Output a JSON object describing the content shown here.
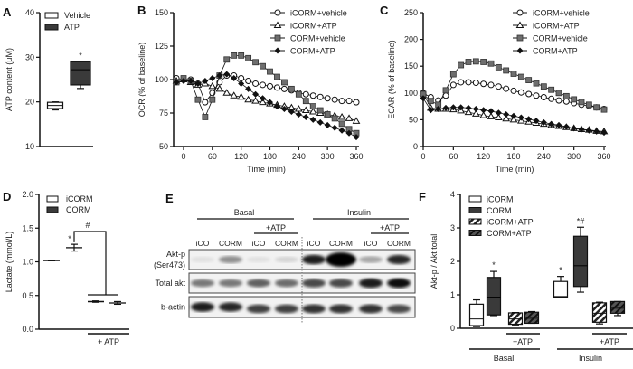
{
  "panels": {
    "A": "A",
    "B": "B",
    "C": "C",
    "D": "D",
    "E": "E",
    "F": "F"
  },
  "colors": {
    "dark": "#3a3a3a",
    "black": "#111111",
    "grey": "#777777",
    "white": "#ffffff"
  },
  "chart_data": [
    {
      "id": "A",
      "type": "box",
      "ylabel": "ATP content (μM)",
      "ylim": [
        10,
        40
      ],
      "yticks": [
        10,
        20,
        30,
        40
      ],
      "legend": [
        "Vehicle",
        "ATP"
      ],
      "groups": [
        {
          "name": "Vehicle",
          "fill": "white",
          "min": 18.2,
          "q1": 18.5,
          "median": 19.2,
          "q3": 19.9,
          "max": 20.0,
          "annotation": ""
        },
        {
          "name": "ATP",
          "fill": "dark",
          "min": 23.0,
          "q1": 23.8,
          "median": 27.2,
          "q3": 29.0,
          "max": 29.0,
          "annotation": "*"
        }
      ]
    },
    {
      "id": "B",
      "type": "line",
      "xlabel": "Time (min)",
      "ylabel": "OCR (% of baseline)",
      "xlim": [
        -20,
        360
      ],
      "ylim": [
        50,
        150
      ],
      "xticks": [
        0,
        60,
        120,
        180,
        240,
        300,
        360
      ],
      "yticks": [
        50,
        75,
        100,
        125,
        150
      ],
      "legend_position": "top-right",
      "x": [
        -15,
        0,
        15,
        30,
        45,
        60,
        75,
        90,
        105,
        120,
        135,
        150,
        165,
        180,
        195,
        210,
        225,
        240,
        255,
        270,
        285,
        300,
        315,
        330,
        345,
        360
      ],
      "series": [
        {
          "name": "iCORM+vehicle",
          "marker": "circle-open",
          "values": [
            101,
            100,
            100,
            97,
            83,
            90,
            98,
            103,
            103,
            101,
            99,
            97,
            96,
            95,
            94,
            93,
            92,
            90,
            89,
            88,
            87,
            86,
            85,
            84,
            84,
            83
          ]
        },
        {
          "name": "iCORM+ATP",
          "marker": "triangle-open",
          "values": [
            99,
            100,
            98,
            96,
            97,
            95,
            93,
            90,
            88,
            87,
            85,
            84,
            83,
            82,
            81,
            80,
            79,
            78,
            77,
            76,
            75,
            74,
            73,
            72,
            71,
            69
          ]
        },
        {
          "name": "CORM+vehicle",
          "marker": "square-grey",
          "values": [
            98,
            101,
            99,
            85,
            72,
            85,
            103,
            115,
            118,
            118,
            116,
            113,
            110,
            106,
            102,
            98,
            93,
            89,
            84,
            80,
            77,
            74,
            71,
            67,
            63,
            60
          ]
        },
        {
          "name": "CORM+ATP",
          "marker": "diamond-black",
          "values": [
            98,
            99,
            99,
            97,
            99,
            101,
            103,
            104,
            101,
            97,
            93,
            89,
            86,
            83,
            80,
            78,
            76,
            74,
            72,
            70,
            68,
            66,
            64,
            62,
            60,
            57
          ]
        }
      ]
    },
    {
      "id": "C",
      "type": "line",
      "xlabel": "Time (min)",
      "ylabel": "ECAR (% of baseline)",
      "xlim": [
        0,
        360
      ],
      "ylim": [
        0,
        250
      ],
      "xticks": [
        0,
        60,
        120,
        180,
        240,
        300,
        360
      ],
      "yticks": [
        0,
        50,
        100,
        150,
        200,
        250
      ],
      "legend_position": "top-right",
      "x": [
        0,
        15,
        30,
        45,
        60,
        75,
        90,
        105,
        120,
        135,
        150,
        165,
        180,
        195,
        210,
        225,
        240,
        255,
        270,
        285,
        300,
        315,
        330,
        345,
        360
      ],
      "series": [
        {
          "name": "iCORM+vehicle",
          "marker": "circle-open",
          "values": [
            100,
            92,
            86,
            95,
            115,
            120,
            120,
            119,
            117,
            115,
            112,
            108,
            104,
            101,
            98,
            95,
            92,
            89,
            86,
            84,
            81,
            78,
            76,
            73,
            70
          ]
        },
        {
          "name": "iCORM+ATP",
          "marker": "triangle-open",
          "values": [
            100,
            72,
            70,
            70,
            69,
            67,
            64,
            61,
            58,
            56,
            54,
            52,
            50,
            48,
            46,
            44,
            42,
            40,
            38,
            36,
            34,
            32,
            31,
            29,
            28
          ]
        },
        {
          "name": "CORM+vehicle",
          "marker": "square-grey",
          "values": [
            98,
            85,
            78,
            105,
            135,
            152,
            158,
            159,
            158,
            155,
            148,
            142,
            136,
            130,
            124,
            118,
            112,
            106,
            100,
            94,
            88,
            83,
            78,
            73,
            69
          ]
        },
        {
          "name": "CORM+ATP",
          "marker": "diamond-black",
          "values": [
            90,
            68,
            70,
            72,
            73,
            73,
            72,
            70,
            68,
            66,
            63,
            60,
            57,
            54,
            51,
            48,
            45,
            42,
            40,
            37,
            34,
            32,
            30,
            28,
            26
          ]
        }
      ]
    },
    {
      "id": "D",
      "type": "mean-sem",
      "ylabel": "Lactate (mmol/L)",
      "ylim": [
        0,
        2
      ],
      "yticks": [
        "0.0",
        "0.5",
        "1.0",
        "1.5",
        "2.0"
      ],
      "legend": [
        "iCORM",
        "CORM"
      ],
      "group_label": "+ ATP",
      "bracket_annotation": "#",
      "groups": [
        {
          "name": "iCORM",
          "mean": 1.02,
          "sem": 0.005,
          "annotation": ""
        },
        {
          "name": "CORM",
          "mean": 1.21,
          "sem": 0.05,
          "annotation": "*"
        },
        {
          "name": "iCORM+ATP",
          "mean": 0.41,
          "sem": 0.01,
          "annotation": ""
        },
        {
          "name": "CORM+ATP",
          "mean": 0.39,
          "sem": 0.02,
          "annotation": ""
        }
      ]
    },
    {
      "id": "F",
      "type": "box",
      "ylabel": "Akt-p / Akt total",
      "ylim": [
        0,
        4
      ],
      "yticks": [
        0,
        1,
        2,
        3,
        4
      ],
      "legend": [
        "iCORM",
        "CORM",
        "iCORM+ATP",
        "CORM+ATP"
      ],
      "conditions": [
        "Basal",
        "Insulin"
      ],
      "group_label": "+ATP",
      "groups": [
        {
          "condition": "Basal",
          "name": "iCORM",
          "fill": "white",
          "min": 0.05,
          "q1": 0.08,
          "median": 0.28,
          "q3": 0.72,
          "max": 0.85,
          "annotation": ""
        },
        {
          "condition": "Basal",
          "name": "CORM",
          "fill": "dark",
          "min": 0.38,
          "q1": 0.4,
          "median": 0.93,
          "q3": 1.52,
          "max": 1.7,
          "annotation": "*"
        },
        {
          "condition": "Basal",
          "name": "iCORM+ATP",
          "fill": "hatch-white",
          "min": 0.1,
          "q1": 0.12,
          "median": 0.28,
          "q3": 0.46,
          "max": 0.47,
          "annotation": ""
        },
        {
          "condition": "Basal",
          "name": "CORM+ATP",
          "fill": "hatch-dark",
          "min": 0.15,
          "q1": 0.15,
          "median": 0.3,
          "q3": 0.48,
          "max": 0.5,
          "annotation": ""
        },
        {
          "condition": "Insulin",
          "name": "iCORM",
          "fill": "white",
          "min": 0.92,
          "q1": 0.93,
          "median": 0.95,
          "q3": 1.4,
          "max": 1.55,
          "annotation": "*"
        },
        {
          "condition": "Insulin",
          "name": "CORM",
          "fill": "dark",
          "min": 1.08,
          "q1": 1.25,
          "median": 1.87,
          "q3": 2.75,
          "max": 3.02,
          "annotation": "*#"
        },
        {
          "condition": "Insulin",
          "name": "iCORM+ATP",
          "fill": "hatch-white",
          "min": 0.13,
          "q1": 0.18,
          "median": 0.45,
          "q3": 0.76,
          "max": 0.78,
          "annotation": ""
        },
        {
          "condition": "Insulin",
          "name": "CORM+ATP",
          "fill": "hatch-dark",
          "min": 0.38,
          "q1": 0.45,
          "median": 0.6,
          "q3": 0.8,
          "max": 0.8,
          "annotation": ""
        }
      ]
    }
  ],
  "blot": {
    "conditions": [
      "Basal",
      "Insulin"
    ],
    "atp_label": "+ATP",
    "lanes": [
      "iCO",
      "CORM",
      "iCO",
      "CORM",
      "iCO",
      "CORM",
      "iCO",
      "CORM"
    ],
    "rows": [
      {
        "label": "Akt-p",
        "sublabel": "(Ser473)",
        "intensity": [
          0.05,
          0.4,
          0.05,
          0.1,
          0.9,
          1.0,
          0.3,
          0.85
        ]
      },
      {
        "label": "Total akt",
        "sublabel": "",
        "intensity": [
          0.5,
          0.5,
          0.6,
          0.55,
          0.7,
          0.7,
          0.9,
          0.95
        ]
      },
      {
        "label": "b-actin",
        "sublabel": "",
        "intensity": [
          0.9,
          0.85,
          0.75,
          0.75,
          0.8,
          0.8,
          0.8,
          0.7
        ]
      }
    ]
  }
}
